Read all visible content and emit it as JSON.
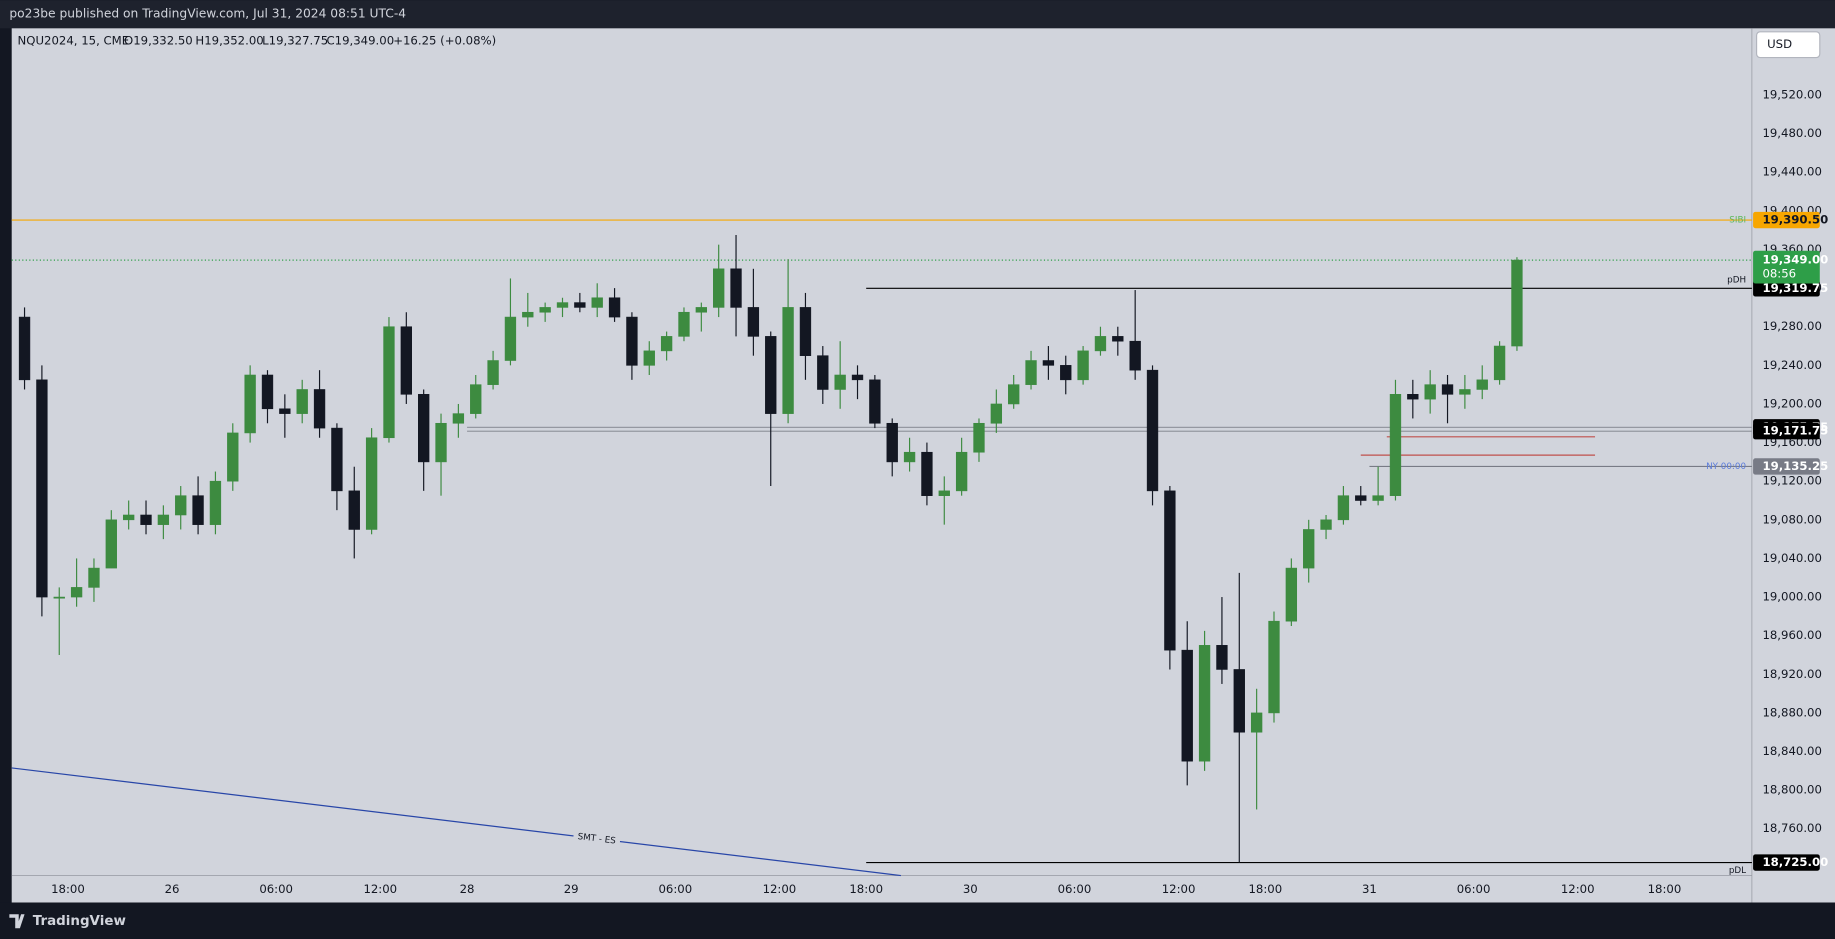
{
  "header": {
    "publisher": "po23be published on TradingView.com, Jul 31, 2024 08:51 UTC-4"
  },
  "footer": {
    "brand": "TradingView"
  },
  "currency": "USD",
  "legend": {
    "symbol": "NQU2024, 15, CME",
    "open": "O19,332.50",
    "high": "H19,352.00",
    "low": "L19,327.75",
    "close": "C19,349.00",
    "change": "+16.25 (+0.08%)"
  },
  "chart_data": {
    "type": "candlestick",
    "x": [
      -3,
      -2,
      -1,
      0,
      1,
      2,
      3,
      4,
      5,
      6,
      7,
      8,
      9,
      10,
      11,
      12,
      13,
      14,
      15,
      16,
      17,
      18,
      19,
      20,
      21,
      22,
      23,
      24,
      25,
      26,
      27,
      28,
      29,
      30,
      31,
      32,
      33,
      34,
      35,
      36,
      37,
      38,
      39,
      40,
      41,
      42,
      43,
      44,
      45,
      46,
      47,
      48,
      49,
      50,
      51,
      52,
      53,
      54,
      55,
      56,
      57,
      58,
      59,
      60,
      61,
      62,
      63,
      64,
      65,
      66,
      67,
      68,
      69,
      70,
      71,
      72,
      73,
      74,
      75,
      76,
      77,
      78,
      79,
      80,
      81,
      82,
      83
    ],
    "open": [
      19290,
      19225,
      19000,
      19000,
      19010,
      19030,
      19080,
      19085,
      19075,
      19085,
      19105,
      19075,
      19120,
      19170,
      19230,
      19195,
      19190,
      19215,
      19175,
      19110,
      19070,
      19165,
      19280,
      19210,
      19140,
      19180,
      19190,
      19220,
      19245,
      19290,
      19295,
      19300,
      19305,
      19300,
      19310,
      19290,
      19240,
      19255,
      19270,
      19295,
      19300,
      19340,
      19300,
      19270,
      19190,
      19300,
      19250,
      19215,
      19230,
      19225,
      19180,
      19140,
      19150,
      19105,
      19110,
      19150,
      19180,
      19200,
      19220,
      19245,
      19240,
      19225,
      19255,
      19270,
      19265,
      19235,
      19110,
      18945,
      18830,
      18950,
      18925,
      18860,
      18880,
      18975,
      19030,
      19070,
      19080,
      19105,
      19100,
      19105,
      19210,
      19205,
      19220,
      19210,
      19215,
      19225,
      19260
    ],
    "high": [
      19300,
      19240,
      19010,
      19040,
      19040,
      19090,
      19100,
      19100,
      19095,
      19115,
      19125,
      19130,
      19180,
      19240,
      19235,
      19210,
      19225,
      19235,
      19180,
      19135,
      19175,
      19290,
      19295,
      19215,
      19190,
      19200,
      19230,
      19255,
      19330,
      19315,
      19305,
      19310,
      19315,
      19325,
      19320,
      19295,
      19265,
      19275,
      19300,
      19305,
      19365,
      19375,
      19340,
      19275,
      19350,
      19315,
      19260,
      19265,
      19240,
      19230,
      19185,
      19165,
      19160,
      19125,
      19165,
      19185,
      19215,
      19230,
      19255,
      19260,
      19250,
      19260,
      19280,
      19280,
      19318,
      19240,
      19115,
      18975,
      18965,
      19000,
      19025,
      18905,
      18985,
      19040,
      19080,
      19085,
      19115,
      19115,
      19135,
      19225,
      19225,
      19235,
      19230,
      19230,
      19240,
      19265,
      19352
    ],
    "low": [
      19215,
      18980,
      18940,
      18990,
      18995,
      19030,
      19070,
      19065,
      19060,
      19070,
      19065,
      19065,
      19110,
      19160,
      19180,
      19165,
      19180,
      19165,
      19090,
      19040,
      19065,
      19160,
      19200,
      19110,
      19105,
      19165,
      19185,
      19215,
      19240,
      19280,
      19285,
      19290,
      19295,
      19290,
      19285,
      19225,
      19230,
      19245,
      19265,
      19275,
      19290,
      19270,
      19250,
      19115,
      19180,
      19225,
      19200,
      19195,
      19205,
      19175,
      19125,
      19130,
      19095,
      19075,
      19105,
      19140,
      19170,
      19195,
      19215,
      19225,
      19210,
      19220,
      19250,
      19250,
      19225,
      19095,
      18925,
      18805,
      18820,
      18910,
      18725,
      18780,
      18870,
      18970,
      19015,
      19060,
      19075,
      19095,
      19095,
      19100,
      19185,
      19190,
      19180,
      19195,
      19205,
      19220,
      19255
    ],
    "close": [
      19225,
      19000,
      19000,
      19010,
      19030,
      19080,
      19085,
      19075,
      19085,
      19105,
      19075,
      19120,
      19170,
      19230,
      19195,
      19190,
      19215,
      19175,
      19110,
      19070,
      19165,
      19280,
      19210,
      19140,
      19180,
      19190,
      19220,
      19245,
      19290,
      19295,
      19300,
      19305,
      19300,
      19310,
      19290,
      19240,
      19255,
      19270,
      19295,
      19300,
      19340,
      19300,
      19270,
      19190,
      19300,
      19250,
      19215,
      19230,
      19225,
      19180,
      19140,
      19150,
      19105,
      19110,
      19150,
      19180,
      19200,
      19220,
      19245,
      19240,
      19225,
      19255,
      19270,
      19265,
      19235,
      19110,
      18945,
      18830,
      18950,
      18925,
      18860,
      18880,
      18975,
      19030,
      19070,
      19080,
      19105,
      19100,
      19105,
      19210,
      19205,
      19220,
      19210,
      19215,
      19225,
      19260,
      19349
    ],
    "up_color": "#3d8b40",
    "down_color": "#131722",
    "xlim": [
      -3.24,
      97.04
    ],
    "ylim": [
      18711.5,
      19589.1
    ],
    "xticks": [
      {
        "value": 0,
        "label": "18:00"
      },
      {
        "value": 6,
        "label": "26"
      },
      {
        "value": 12,
        "label": "06:00"
      },
      {
        "value": 18,
        "label": "12:00"
      },
      {
        "value": 23,
        "label": "28"
      },
      {
        "value": 29,
        "label": "29"
      },
      {
        "value": 35,
        "label": "06:00"
      },
      {
        "value": 41,
        "label": "12:00"
      },
      {
        "value": 46,
        "label": "18:00"
      },
      {
        "value": 52,
        "label": "30"
      },
      {
        "value": 58,
        "label": "06:00"
      },
      {
        "value": 64,
        "label": "12:00"
      },
      {
        "value": 69,
        "label": "18:00"
      },
      {
        "value": 75,
        "label": "31"
      },
      {
        "value": 81,
        "label": "06:00"
      },
      {
        "value": 87,
        "label": "12:00"
      },
      {
        "value": 92,
        "label": "18:00"
      }
    ],
    "yticks": [
      {
        "value": 18760,
        "label": "18,760.00"
      },
      {
        "value": 18800,
        "label": "18,800.00"
      },
      {
        "value": 18840,
        "label": "18,840.00"
      },
      {
        "value": 18880,
        "label": "18,880.00"
      },
      {
        "value": 18920,
        "label": "18,920.00"
      },
      {
        "value": 18960,
        "label": "18,960.00"
      },
      {
        "value": 19000,
        "label": "19,000.00"
      },
      {
        "value": 19040,
        "label": "19,040.00"
      },
      {
        "value": 19080,
        "label": "19,080.00"
      },
      {
        "value": 19120,
        "label": "19,120.00"
      },
      {
        "value": 19160,
        "label": "19,160.00"
      },
      {
        "value": 19200,
        "label": "19,200.00"
      },
      {
        "value": 19240,
        "label": "19,240.00"
      },
      {
        "value": 19280,
        "label": "19,280.00"
      },
      {
        "value": 19320,
        "label": "19,320.00"
      },
      {
        "value": 19360,
        "label": "19,360.00"
      },
      {
        "value": 19400,
        "label": "19,400.00"
      },
      {
        "value": 19440,
        "label": "19,440.00"
      },
      {
        "value": 19480,
        "label": "19,480.00"
      },
      {
        "value": 19520,
        "label": "19,520.00"
      }
    ],
    "grid": false,
    "last_price": {
      "value": 19349,
      "label": "19,349.00",
      "countdown": "08:56",
      "color": "#2e9e48"
    },
    "levels": [
      {
        "name": "SIBI",
        "value": 19390.5,
        "value_label": "19,390.50",
        "color": "#f7a600",
        "box_color": "#f7a600",
        "text_color": "#131722",
        "label_color": "#5cb85c"
      },
      {
        "name": "pDH",
        "value": 19319.75,
        "value_label": "19,319.75",
        "color": "#000000",
        "box_color": "#000000",
        "text_color": "#ffffff",
        "label_color": "#131722",
        "start": 46
      },
      {
        "value": 19175.75,
        "value_label": "19,175.75",
        "color": "#9598a1",
        "box_color": "#000000",
        "text_color": "#ffffff",
        "start": 23
      },
      {
        "value": 19171.75,
        "value_label": "19,171.75",
        "color": "#9598a1",
        "box_color": "#000000",
        "text_color": "#ffffff",
        "start": 23
      },
      {
        "name": "NY 00:00",
        "value": 19135.25,
        "value_label": "19,135.25",
        "color": "#787b86",
        "box_color": "#787b86",
        "text_color": "#ffffff",
        "label_color": "#5b7cdb",
        "start": 75
      },
      {
        "name": "pDL",
        "value": 18725,
        "value_label": "18,725.00",
        "color": "#000000",
        "box_color": "#000000",
        "text_color": "#ffffff",
        "label_color": "#131722",
        "start": 46
      },
      {
        "value": 19166,
        "color": "#c0504d",
        "start": 76,
        "end": 88
      },
      {
        "value": 19147,
        "color": "#c0504d",
        "start": 74.5,
        "end": 88
      }
    ],
    "trendline": {
      "label": "SMT - ES",
      "x": [
        -3.24,
        48
      ],
      "y": [
        18823,
        18711.5
      ],
      "color": "#2846a8"
    }
  }
}
